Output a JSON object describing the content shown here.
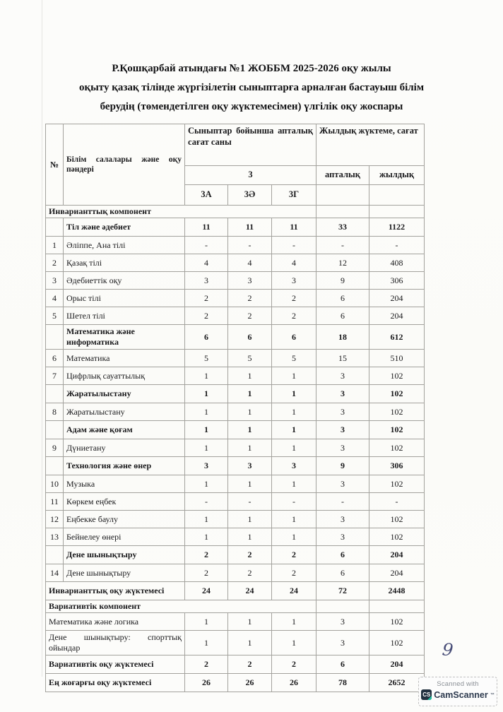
{
  "page": {
    "title_lines": [
      "Р.Қошқарбай атындағы №1 ЖОББМ 2025-2026 оқу жылы",
      "оқыту қазақ тілінде жүргізілетін сыныптарға арналған бастауыш білім",
      "берудің (төмендетілген оқу жүктемесімен) үлгілік оқу жоспары"
    ],
    "page_number": "9"
  },
  "table": {
    "header": {
      "col_no": "№",
      "col_subjects": "Білім салалары және оқу пәндері",
      "col_weekly_group": "Сыныптар бойынша апталық сағат саны",
      "grade": "3",
      "classes": [
        "3А",
        "3Ә",
        "3Г"
      ],
      "col_yearly_group": "Жылдық жүктеме, сағат",
      "col_weekly": "апталық",
      "col_yearly": "жылдық"
    },
    "rows": [
      {
        "type": "section",
        "label": "Инварианттық компонент"
      },
      {
        "type": "category",
        "label": "Тіл және әдебиет",
        "values": [
          "11",
          "11",
          "11",
          "33",
          "1122"
        ]
      },
      {
        "type": "subject",
        "no": "1",
        "label": "Әліппе, Ана тілі",
        "values": [
          "-",
          "-",
          "-",
          "-",
          "-"
        ]
      },
      {
        "type": "subject",
        "no": "2",
        "label": "Қазақ тілі",
        "values": [
          "4",
          "4",
          "4",
          "12",
          "408"
        ]
      },
      {
        "type": "subject",
        "no": "3",
        "label": "Әдебиеттік оқу",
        "values": [
          "3",
          "3",
          "3",
          "9",
          "306"
        ]
      },
      {
        "type": "subject",
        "no": "4",
        "label": "Орыс тілі",
        "values": [
          "2",
          "2",
          "2",
          "6",
          "204"
        ]
      },
      {
        "type": "subject",
        "no": "5",
        "label": "Шетел тілі",
        "values": [
          "2",
          "2",
          "2",
          "6",
          "204"
        ]
      },
      {
        "type": "category",
        "label": "Математика және информатика",
        "values": [
          "6",
          "6",
          "6",
          "18",
          "612"
        ]
      },
      {
        "type": "subject",
        "no": "6",
        "label": "Математика",
        "values": [
          "5",
          "5",
          "5",
          "15",
          "510"
        ]
      },
      {
        "type": "subject",
        "no": "7",
        "label": "Цифрлық сауаттылық",
        "values": [
          "1",
          "1",
          "1",
          "3",
          "102"
        ]
      },
      {
        "type": "category",
        "label": "Жаратылыстану",
        "values": [
          "1",
          "1",
          "1",
          "3",
          "102"
        ]
      },
      {
        "type": "subject",
        "no": "8",
        "label": "Жаратылыстану",
        "values": [
          "1",
          "1",
          "1",
          "3",
          "102"
        ]
      },
      {
        "type": "category",
        "label": "Адам және қоғам",
        "values": [
          "1",
          "1",
          "1",
          "3",
          "102"
        ]
      },
      {
        "type": "subject",
        "no": "9",
        "label": "Дүниетану",
        "values": [
          "1",
          "1",
          "1",
          "3",
          "102"
        ]
      },
      {
        "type": "category",
        "label": "Технология және өнер",
        "values": [
          "3",
          "3",
          "3",
          "9",
          "306"
        ]
      },
      {
        "type": "subject",
        "no": "10",
        "label": "Музыка",
        "values": [
          "1",
          "1",
          "1",
          "3",
          "102"
        ]
      },
      {
        "type": "subject",
        "no": "11",
        "label": "Көркем еңбек",
        "values": [
          "-",
          "-",
          "-",
          "-",
          "-"
        ]
      },
      {
        "type": "subject",
        "no": "12",
        "label": "Еңбекке баулу",
        "values": [
          "1",
          "1",
          "1",
          "3",
          "102"
        ]
      },
      {
        "type": "subject",
        "no": "13",
        "label": "Бейнелеу өнері",
        "values": [
          "1",
          "1",
          "1",
          "3",
          "102"
        ]
      },
      {
        "type": "category",
        "label": "Дене шынықтыру",
        "values": [
          "2",
          "2",
          "2",
          "6",
          "204"
        ]
      },
      {
        "type": "subject",
        "no": "14",
        "label": "Дене шынықтыру",
        "values": [
          "2",
          "2",
          "2",
          "6",
          "204"
        ]
      },
      {
        "type": "total",
        "label": "Инварианттық оқу жүктемесі",
        "values": [
          "24",
          "24",
          "24",
          "72",
          "2448"
        ]
      },
      {
        "type": "section",
        "label": "Вариативтік компонент"
      },
      {
        "type": "plain",
        "label": "Математика және логика",
        "values": [
          "1",
          "1",
          "1",
          "3",
          "102"
        ]
      },
      {
        "type": "plain",
        "label": "Дене шынықтыру: спорттық ойындар",
        "values": [
          "1",
          "1",
          "1",
          "3",
          "102"
        ]
      },
      {
        "type": "total",
        "label": "Вариативтік оқу жүктемесі",
        "values": [
          "2",
          "2",
          "2",
          "6",
          "204"
        ]
      },
      {
        "type": "total",
        "label": "Ең жоғарғы оқу жүктемесі",
        "values": [
          "26",
          "26",
          "26",
          "78",
          "2652"
        ]
      }
    ]
  },
  "camscanner": {
    "scanned_with": "Scanned with",
    "logo": "CS",
    "brand": "CamScanner",
    "colors": {
      "logo_bg": "#223140",
      "accent_teal": "#1ec0a0",
      "brand_text": "#2d3a4e"
    }
  }
}
